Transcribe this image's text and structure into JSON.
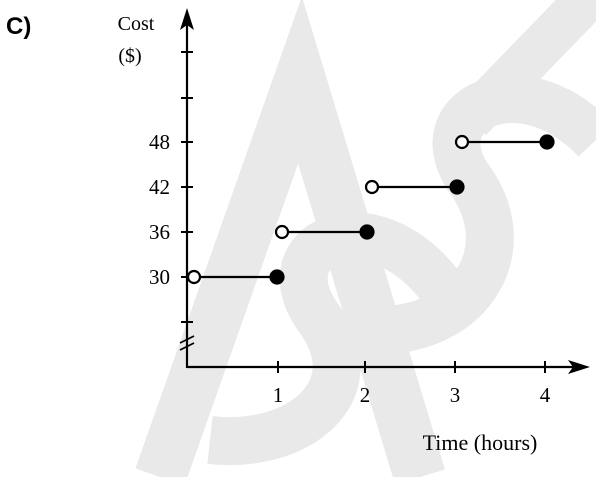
{
  "option_label": "C)",
  "watermark_text": "ASSS",
  "chart_data": {
    "type": "step",
    "ylabel_line1": "Cost",
    "ylabel_line2": "($)",
    "xlabel": "Time (hours)",
    "x_ticks": [
      "1",
      "2",
      "3",
      "4"
    ],
    "y_ticks": [
      "30",
      "36",
      "42",
      "48"
    ],
    "axis_break": true,
    "grid": false,
    "xlim": [
      0,
      4.4
    ],
    "ylim": [
      24,
      54
    ],
    "steps": [
      {
        "x_start": 0,
        "x_end": 1,
        "value": 30,
        "start_closed": false,
        "end_closed": true
      },
      {
        "x_start": 1,
        "x_end": 2,
        "value": 36,
        "start_closed": false,
        "end_closed": true
      },
      {
        "x_start": 2,
        "x_end": 3,
        "value": 42,
        "start_closed": false,
        "end_closed": true
      },
      {
        "x_start": 3,
        "x_end": 4,
        "value": 48,
        "start_closed": false,
        "end_closed": true
      }
    ],
    "colors": {
      "ink": "#000000",
      "watermark": "#e8e8e8"
    }
  }
}
